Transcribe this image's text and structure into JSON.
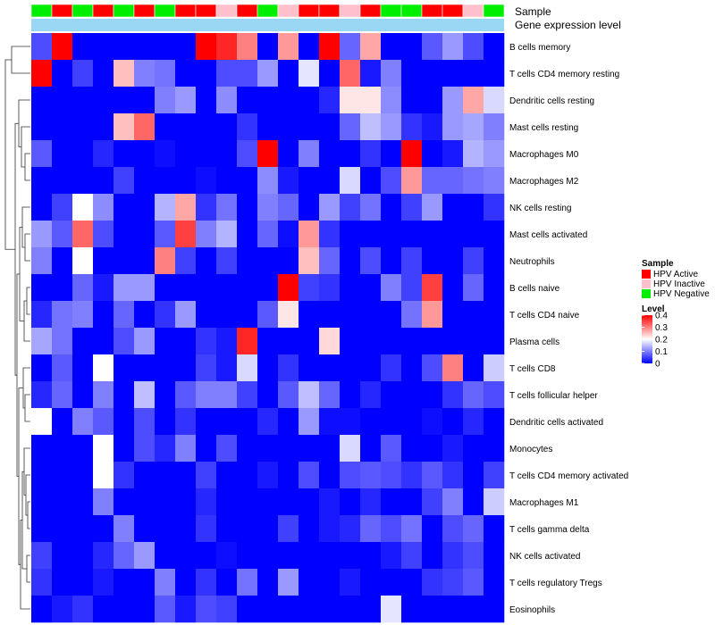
{
  "chart_data": {
    "type": "heatmap",
    "title": "",
    "annotation_labels": {
      "sample": "Sample",
      "gene": "Gene expression level"
    },
    "rows": [
      "B cells memory",
      "T cells CD4 memory resting",
      "Dendritic cells resting",
      "Mast cells resting",
      "Macrophages M0",
      "Macrophages M2",
      "NK cells resting",
      "Mast cells activated",
      "Neutrophils",
      "B cells naive",
      "T cells CD4 naive",
      "Plasma cells",
      "T cells CD8",
      "T cells follicular helper",
      "Dendritic cells activated",
      "Monocytes",
      "T cells CD4 memory activated",
      "Macrophages M1",
      "T cells gamma delta",
      "NK cells activated",
      "T cells regulatory  Tregs",
      "Eosinophils"
    ],
    "sample_groups": [
      "HPV Negative",
      "HPV Active",
      "HPV Negative",
      "HPV Active",
      "HPV Negative",
      "HPV Active",
      "HPV Negative",
      "HPV Active",
      "HPV Active",
      "HPV Inactive",
      "HPV Active",
      "HPV Negative",
      "HPV Inactive",
      "HPV Active",
      "HPV Active",
      "HPV Inactive",
      "HPV Active",
      "HPV Negative",
      "HPV Negative",
      "HPV Active",
      "HPV Active",
      "HPV Inactive",
      "HPV Negative"
    ],
    "values": [
      [
        0.06,
        0.4,
        0.0,
        0.0,
        0.0,
        0.0,
        0.0,
        0.0,
        0.4,
        0.37,
        0.3,
        0.0,
        0.28,
        0.0,
        0.4,
        0.08,
        0.27,
        0.0,
        0.0,
        0.07,
        0.12,
        0.06,
        0.0
      ],
      [
        0.4,
        0.0,
        0.05,
        0.0,
        0.25,
        0.1,
        0.09,
        0.0,
        0.0,
        0.06,
        0.06,
        0.12,
        0.0,
        0.18,
        0.0,
        0.32,
        0.02,
        0.1,
        0.0,
        0.0,
        0.0,
        0.0,
        0.0
      ],
      [
        0.0,
        0.0,
        0.0,
        0.0,
        0.0,
        0.0,
        0.1,
        0.12,
        0.0,
        0.11,
        0.0,
        0.0,
        0.0,
        0.0,
        0.03,
        0.22,
        0.22,
        0.11,
        0.0,
        0.0,
        0.12,
        0.27,
        0.17
      ],
      [
        0.0,
        0.0,
        0.0,
        0.0,
        0.25,
        0.32,
        0.0,
        0.0,
        0.0,
        0.0,
        0.04,
        0.0,
        0.0,
        0.0,
        0.0,
        0.08,
        0.15,
        0.12,
        0.04,
        0.02,
        0.12,
        0.13,
        0.1
      ],
      [
        0.07,
        0.0,
        0.0,
        0.03,
        0.0,
        0.0,
        0.01,
        0.0,
        0.0,
        0.0,
        0.06,
        0.4,
        0.0,
        0.1,
        0.0,
        0.0,
        0.04,
        0.0,
        0.4,
        0.0,
        0.02,
        0.14,
        0.12
      ],
      [
        0.0,
        0.0,
        0.0,
        0.0,
        0.05,
        0.0,
        0.0,
        0.0,
        0.01,
        0.0,
        0.0,
        0.11,
        0.02,
        0.0,
        0.0,
        0.17,
        0.0,
        0.06,
        0.28,
        0.08,
        0.08,
        0.09,
        0.1
      ],
      [
        0.0,
        0.05,
        0.2,
        0.11,
        0.0,
        0.0,
        0.14,
        0.27,
        0.04,
        0.09,
        0.0,
        0.1,
        0.08,
        0.0,
        0.12,
        0.05,
        0.09,
        0.0,
        0.05,
        0.12,
        0.0,
        0.0,
        0.04
      ],
      [
        0.12,
        0.07,
        0.32,
        0.06,
        0.0,
        0.0,
        0.07,
        0.35,
        0.1,
        0.14,
        0.0,
        0.08,
        0.01,
        0.28,
        0.04,
        0.0,
        0.0,
        0.0,
        0.0,
        0.0,
        0.0,
        0.0,
        0.0
      ],
      [
        0.1,
        0.0,
        0.2,
        0.0,
        0.0,
        0.0,
        0.3,
        0.05,
        0.0,
        0.05,
        0.0,
        0.0,
        0.0,
        0.25,
        0.08,
        0.0,
        0.06,
        0.0,
        0.05,
        0.0,
        0.0,
        0.05,
        0.0
      ],
      [
        0.0,
        0.0,
        0.08,
        0.02,
        0.12,
        0.12,
        0.0,
        0.0,
        0.0,
        0.0,
        0.0,
        0.0,
        0.4,
        0.05,
        0.04,
        0.0,
        0.0,
        0.1,
        0.05,
        0.35,
        0.0,
        0.08,
        0.0
      ],
      [
        0.03,
        0.09,
        0.1,
        0.0,
        0.08,
        0.0,
        0.04,
        0.12,
        0.0,
        0.0,
        0.0,
        0.07,
        0.22,
        0.0,
        0.0,
        0.0,
        0.0,
        0.0,
        0.09,
        0.28,
        0.0,
        0.0,
        0.0
      ],
      [
        0.13,
        0.09,
        0.0,
        0.0,
        0.06,
        0.12,
        0.0,
        0.0,
        0.04,
        0.02,
        0.37,
        0.0,
        0.0,
        0.0,
        0.23,
        0.0,
        0.0,
        0.0,
        0.0,
        0.0,
        0.0,
        0.0,
        0.0
      ],
      [
        0.0,
        0.07,
        0.0,
        0.2,
        0.0,
        0.0,
        0.0,
        0.0,
        0.05,
        0.02,
        0.17,
        0.0,
        0.04,
        0.0,
        0.0,
        0.0,
        0.0,
        0.04,
        0.0,
        0.06,
        0.3,
        0.0,
        0.16
      ],
      [
        0.03,
        0.08,
        0.0,
        0.1,
        0.0,
        0.15,
        0.0,
        0.07,
        0.1,
        0.1,
        0.05,
        0.0,
        0.07,
        0.15,
        0.08,
        0.0,
        0.03,
        0.0,
        0.0,
        0.0,
        0.04,
        0.08,
        0.06
      ],
      [
        0.2,
        0.0,
        0.1,
        0.07,
        0.0,
        0.06,
        0.0,
        0.04,
        0.0,
        0.0,
        0.0,
        0.03,
        0.0,
        0.12,
        0.01,
        0.01,
        0.0,
        0.0,
        0.0,
        0.01,
        0.0,
        0.03,
        0.0
      ],
      [
        0.0,
        0.0,
        0.0,
        0.2,
        0.0,
        0.06,
        0.03,
        0.1,
        0.0,
        0.06,
        0.0,
        0.0,
        0.0,
        0.0,
        0.0,
        0.17,
        0.0,
        0.07,
        0.0,
        0.0,
        0.02,
        0.0,
        0.0
      ],
      [
        0.0,
        0.0,
        0.0,
        0.2,
        0.04,
        0.0,
        0.0,
        0.0,
        0.05,
        0.0,
        0.0,
        0.02,
        0.0,
        0.06,
        0.0,
        0.06,
        0.07,
        0.06,
        0.04,
        0.07,
        0.04,
        0.0,
        0.05
      ],
      [
        0.0,
        0.0,
        0.0,
        0.1,
        0.0,
        0.0,
        0.0,
        0.0,
        0.03,
        0.0,
        0.0,
        0.0,
        0.0,
        0.0,
        0.02,
        0.0,
        0.03,
        0.0,
        0.0,
        0.05,
        0.1,
        0.0,
        0.16
      ],
      [
        0.0,
        0.0,
        0.0,
        0.0,
        0.1,
        0.0,
        0.0,
        0.0,
        0.04,
        0.0,
        0.0,
        0.0,
        0.05,
        0.0,
        0.02,
        0.03,
        0.08,
        0.06,
        0.09,
        0.0,
        0.06,
        0.08,
        0.0
      ],
      [
        0.05,
        0.0,
        0.0,
        0.03,
        0.08,
        0.12,
        0.0,
        0.0,
        0.0,
        0.01,
        0.0,
        0.0,
        0.0,
        0.0,
        0.0,
        0.0,
        0.0,
        0.02,
        0.05,
        0.0,
        0.04,
        0.06,
        0.0
      ],
      [
        0.04,
        0.0,
        0.0,
        0.02,
        0.0,
        0.0,
        0.1,
        0.0,
        0.04,
        0.0,
        0.09,
        0.0,
        0.12,
        0.0,
        0.0,
        0.02,
        0.0,
        0.0,
        0.0,
        0.04,
        0.05,
        0.07,
        0.0
      ],
      [
        0.0,
        0.02,
        0.04,
        0.0,
        0.0,
        0.0,
        0.07,
        0.02,
        0.06,
        0.05,
        0.0,
        0.0,
        0.0,
        0.0,
        0.0,
        0.0,
        0.0,
        0.18,
        0.0,
        0.0,
        0.0,
        0.0,
        0.0
      ]
    ],
    "color_scale": {
      "min": 0,
      "max": 0.4,
      "low": "#0000ff",
      "mid": "#ffffff",
      "high": "#ff0000"
    },
    "gene_expression_color": "#9ad7f5",
    "legends": {
      "sample": {
        "title": "Sample",
        "items": [
          {
            "label": "HPV Active",
            "color": "#ff0000"
          },
          {
            "label": "HPV Inactive",
            "color": "#ffc0cb"
          },
          {
            "label": "HPV Negative",
            "color": "#00ee00"
          }
        ]
      },
      "level": {
        "title": "Level",
        "ticks": [
          0.4,
          0.3,
          0.2,
          0.1,
          0
        ],
        "tick_labels": [
          "0.4",
          "0.3",
          "0.2",
          "0.1",
          "0"
        ]
      }
    }
  }
}
